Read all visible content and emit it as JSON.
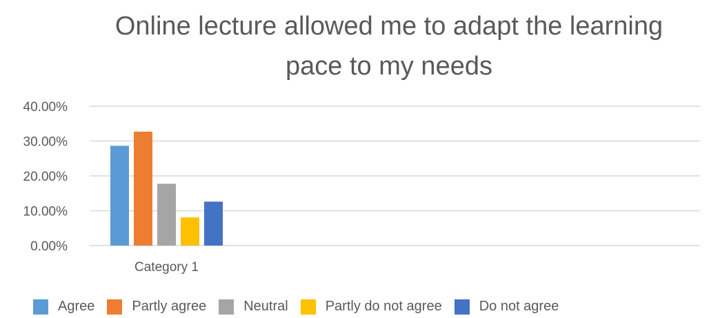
{
  "chart_data": {
    "type": "bar",
    "title_lines": [
      "Online lecture allowed me to adapt the learning",
      "pace to my needs"
    ],
    "categories": [
      "Category 1"
    ],
    "series": [
      {
        "name": "Agree",
        "values": [
          0.2865
        ],
        "color": "#5B9BD5"
      },
      {
        "name": "Partly agree",
        "values": [
          0.327
        ],
        "color": "#ED7D31"
      },
      {
        "name": "Neutral",
        "values": [
          0.1775
        ],
        "color": "#A5A5A5"
      },
      {
        "name": "Partly do not agree",
        "values": [
          0.0807
        ],
        "color": "#FFC000"
      },
      {
        "name": "Do not agree",
        "values": [
          0.1261
        ],
        "color": "#4472C4"
      }
    ],
    "y_ticks": [
      "0.00%",
      "10.00%",
      "20.00%",
      "30.00%",
      "40.00%"
    ],
    "ylim": [
      0,
      0.4
    ],
    "grid": true,
    "legend_position": "bottom"
  }
}
